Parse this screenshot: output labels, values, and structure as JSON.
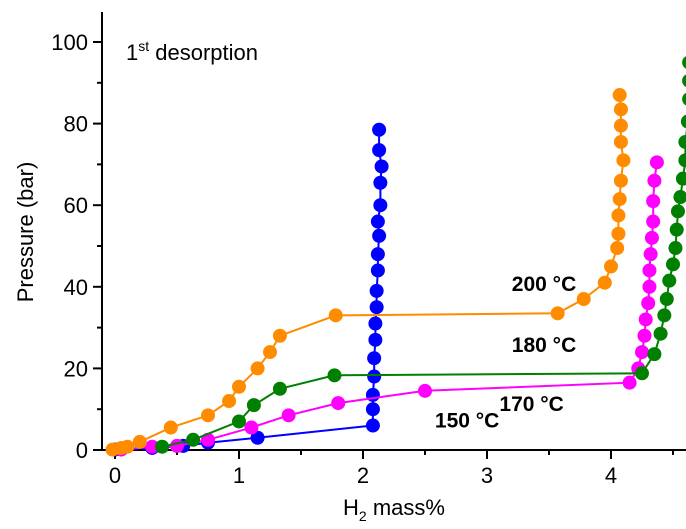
{
  "chart_data": {
    "type": "line",
    "title": {
      "pre": "1",
      "sup": "st",
      "post": " desorption"
    },
    "xlabel": {
      "pre": "H",
      "sub": "2",
      "post": " mass%"
    },
    "ylabel": "Pressure (bar)",
    "xlim": [
      -0.1,
      4.6
    ],
    "ylim": [
      0,
      100
    ],
    "xticks": [
      0,
      1,
      2,
      3,
      4
    ],
    "yticks": [
      0,
      20,
      40,
      60,
      80,
      100
    ],
    "grid": false,
    "legend": "none",
    "series": [
      {
        "label": "150 °C",
        "color": "#0000ff",
        "points": [
          [
            0.0,
            0.1
          ],
          [
            0.05,
            0.2
          ],
          [
            0.3,
            0.5
          ],
          [
            0.55,
            1.0
          ],
          [
            0.75,
            1.8
          ],
          [
            1.15,
            3.0
          ],
          [
            2.08,
            6.0
          ],
          [
            2.08,
            10.0
          ],
          [
            2.08,
            13.5
          ],
          [
            2.09,
            18.0
          ],
          [
            2.09,
            22.5
          ],
          [
            2.1,
            27.0
          ],
          [
            2.1,
            31.0
          ],
          [
            2.11,
            35.0
          ],
          [
            2.11,
            39.0
          ],
          [
            2.12,
            44.0
          ],
          [
            2.12,
            48.0
          ],
          [
            2.13,
            52.5
          ],
          [
            2.12,
            56.0
          ],
          [
            2.14,
            60.0
          ],
          [
            2.14,
            65.5
          ],
          [
            2.15,
            69.5
          ],
          [
            2.13,
            73.5
          ],
          [
            2.13,
            78.5
          ]
        ]
      },
      {
        "label": "170 °C",
        "color": "#ff00ff",
        "points": [
          [
            0.05,
            0.1
          ],
          [
            0.3,
            0.8
          ],
          [
            0.5,
            1.0
          ],
          [
            0.75,
            2.5
          ],
          [
            1.1,
            5.5
          ],
          [
            1.4,
            8.5
          ],
          [
            1.8,
            11.5
          ],
          [
            2.5,
            14.5
          ],
          [
            4.15,
            16.5
          ],
          [
            4.22,
            20.0
          ],
          [
            4.25,
            24.0
          ],
          [
            4.27,
            28.0
          ],
          [
            4.28,
            32.0
          ],
          [
            4.3,
            36.0
          ],
          [
            4.31,
            40.0
          ],
          [
            4.31,
            44.0
          ],
          [
            4.32,
            48.0
          ],
          [
            4.33,
            52.0
          ],
          [
            4.34,
            56.0
          ],
          [
            4.34,
            61.0
          ],
          [
            4.35,
            66.0
          ],
          [
            4.37,
            70.5
          ]
        ]
      },
      {
        "label": "180 °C",
        "color": "#008000",
        "points": [
          [
            0.38,
            0.8
          ],
          [
            0.63,
            2.5
          ],
          [
            1.0,
            7.0
          ],
          [
            1.12,
            11.0
          ],
          [
            1.33,
            15.0
          ],
          [
            1.77,
            18.3
          ],
          [
            4.25,
            18.8
          ],
          [
            4.35,
            23.5
          ],
          [
            4.4,
            28.5
          ],
          [
            4.43,
            33.0
          ],
          [
            4.45,
            37.0
          ],
          [
            4.47,
            41.5
          ],
          [
            4.5,
            45.5
          ],
          [
            4.52,
            49.5
          ],
          [
            4.53,
            54.0
          ],
          [
            4.54,
            58.5
          ],
          [
            4.56,
            62.0
          ],
          [
            4.58,
            66.5
          ],
          [
            4.6,
            71.0
          ],
          [
            4.6,
            75.5
          ],
          [
            4.62,
            80.5
          ],
          [
            4.63,
            86.0
          ],
          [
            4.63,
            90.5
          ],
          [
            4.63,
            95.0
          ]
        ]
      },
      {
        "label": "200 °C",
        "color": "#ff8c00",
        "points": [
          [
            -0.02,
            0.1
          ],
          [
            0.05,
            0.5
          ],
          [
            0.1,
            0.8
          ],
          [
            0.2,
            2.0
          ],
          [
            0.45,
            5.5
          ],
          [
            0.75,
            8.5
          ],
          [
            0.92,
            12.0
          ],
          [
            1.0,
            15.5
          ],
          [
            1.15,
            20.0
          ],
          [
            1.25,
            24.0
          ],
          [
            1.33,
            28.0
          ],
          [
            1.78,
            33.0
          ],
          [
            3.57,
            33.5
          ],
          [
            3.78,
            37.0
          ],
          [
            3.95,
            41.0
          ],
          [
            4.0,
            45.0
          ],
          [
            4.05,
            49.5
          ],
          [
            4.06,
            53.0
          ],
          [
            4.06,
            57.5
          ],
          [
            4.07,
            61.5
          ],
          [
            4.08,
            66.0
          ],
          [
            4.1,
            71.0
          ],
          [
            4.08,
            75.5
          ],
          [
            4.08,
            79.5
          ],
          [
            4.08,
            83.5
          ],
          [
            4.07,
            87.0
          ]
        ]
      }
    ],
    "annotations": [
      {
        "text": "200 °C",
        "x": 3.2,
        "y": 39.0
      },
      {
        "text": "180 °C",
        "x": 3.2,
        "y": 24.0
      },
      {
        "text": "170 °C",
        "x": 3.1,
        "y": 9.5
      },
      {
        "text": "150 °C",
        "x": 2.58,
        "y": 5.5
      }
    ]
  }
}
